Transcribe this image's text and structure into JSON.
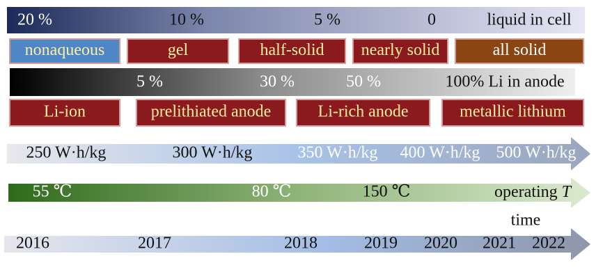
{
  "liquid_row": {
    "labels": [
      "20 %",
      "10 %",
      "5 %",
      "0"
    ],
    "caption": "liquid in cell"
  },
  "electrolyte_boxes": [
    "nonaqueous",
    "gel",
    "half-solid",
    "nearly solid",
    "all solid"
  ],
  "lithium_row": {
    "labels": [
      "5 %",
      "30 %",
      "50 %"
    ],
    "caption": "100% Li in anode"
  },
  "anode_boxes": [
    "Li-ion",
    "prelithiated anode",
    "Li-rich anode",
    "metallic lithium"
  ],
  "energy_row": {
    "labels": [
      "250 W·h/kg",
      "300 W·h/kg",
      "350 W·h/kg",
      "400 W·h/kg",
      "500 W·h/kg"
    ]
  },
  "temperature_row": {
    "labels": [
      "55 ℃",
      "80 ℃",
      "150 ℃"
    ],
    "caption": "operating",
    "caption_symbol": "T"
  },
  "time_row": {
    "caption": "time",
    "years": [
      "2016",
      "2017",
      "2018",
      "2019",
      "2020",
      "2021",
      "2022"
    ]
  }
}
